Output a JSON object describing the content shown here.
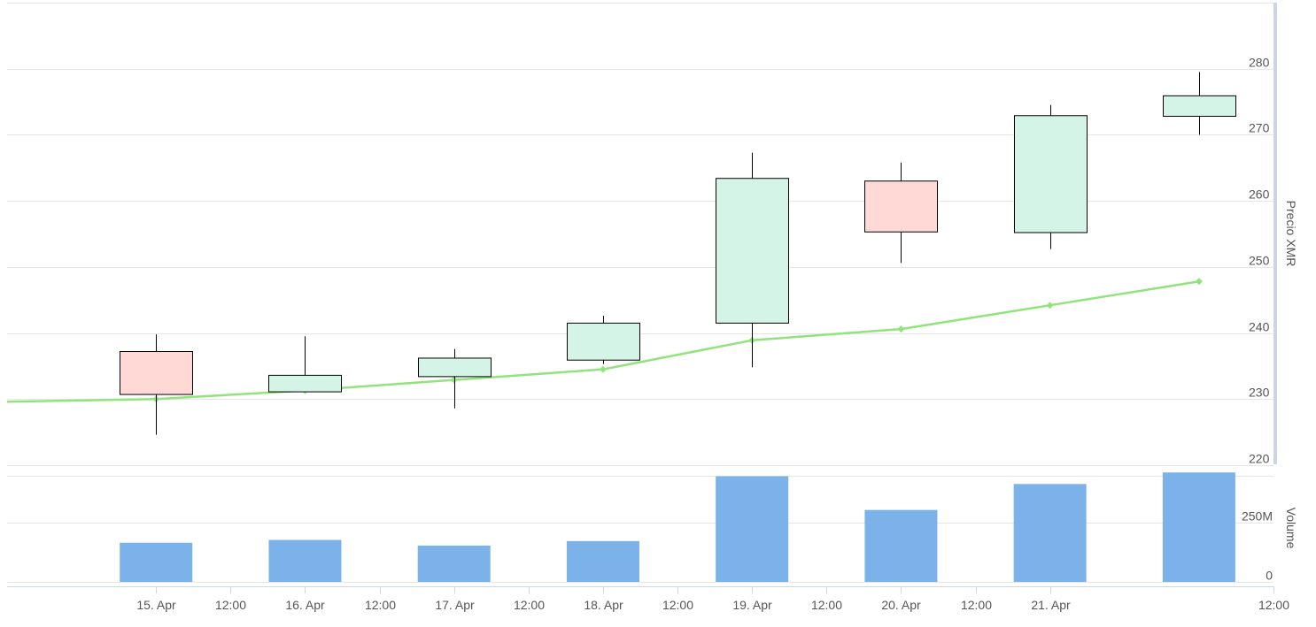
{
  "chart_data": {
    "type": "candlestick",
    "price_axis": {
      "title": "Precio XMR",
      "ticks": [
        220,
        230,
        240,
        250,
        260,
        270,
        280
      ],
      "range": [
        220,
        290
      ]
    },
    "volume_axis": {
      "title": "Volume",
      "ticks": [
        "0",
        "250M"
      ],
      "range_millions": [
        0,
        450
      ]
    },
    "x_axis": {
      "range": [
        "2024-04-14T00:00",
        "2024-04-22T12:00"
      ],
      "tick_labels": [
        {
          "t": "2024-04-15T00:00",
          "label": "15. Apr"
        },
        {
          "t": "2024-04-15T12:00",
          "label": "12:00"
        },
        {
          "t": "2024-04-16T00:00",
          "label": "16. Apr"
        },
        {
          "t": "2024-04-16T12:00",
          "label": "12:00"
        },
        {
          "t": "2024-04-17T00:00",
          "label": "17. Apr"
        },
        {
          "t": "2024-04-17T12:00",
          "label": "12:00"
        },
        {
          "t": "2024-04-18T00:00",
          "label": "18. Apr"
        },
        {
          "t": "2024-04-18T12:00",
          "label": "12:00"
        },
        {
          "t": "2024-04-19T00:00",
          "label": "19. Apr"
        },
        {
          "t": "2024-04-19T12:00",
          "label": "12:00"
        },
        {
          "t": "2024-04-20T00:00",
          "label": "20. Apr"
        },
        {
          "t": "2024-04-20T12:00",
          "label": "12:00"
        },
        {
          "t": "2024-04-21T00:00",
          "label": "21. Apr"
        },
        {
          "t": "2024-04-22T12:00",
          "label": "12:00"
        }
      ]
    },
    "candles": [
      {
        "date": "2024-04-15",
        "open": 237.2,
        "high": 239.8,
        "low": 224.6,
        "close": 230.7
      },
      {
        "date": "2024-04-16",
        "open": 231.1,
        "high": 239.5,
        "low": 231.1,
        "close": 233.6
      },
      {
        "date": "2024-04-17",
        "open": 233.4,
        "high": 237.6,
        "low": 228.6,
        "close": 236.2
      },
      {
        "date": "2024-04-18",
        "open": 235.9,
        "high": 242.6,
        "low": 235.3,
        "close": 241.5
      },
      {
        "date": "2024-04-19",
        "open": 241.5,
        "high": 267.3,
        "low": 234.8,
        "close": 263.4
      },
      {
        "date": "2024-04-20",
        "open": 263.0,
        "high": 265.8,
        "low": 250.6,
        "close": 255.3
      },
      {
        "date": "2024-04-21",
        "open": 255.2,
        "high": 274.5,
        "low": 252.7,
        "close": 272.9
      },
      {
        "date": "2024-04-22",
        "open": 272.8,
        "high": 279.5,
        "low": 270.0,
        "close": 275.9
      }
    ],
    "moving_average": {
      "color": "#90e47b",
      "start": {
        "date": "2024-04-14",
        "value": 229.6
      },
      "points": [
        {
          "date": "2024-04-15",
          "value": 230.0
        },
        {
          "date": "2024-04-16",
          "value": 231.3
        },
        {
          "date": "2024-04-17",
          "value": 232.9
        },
        {
          "date": "2024-04-18",
          "value": 234.5
        },
        {
          "date": "2024-04-19",
          "value": 238.9
        },
        {
          "date": "2024-04-20",
          "value": 240.6
        },
        {
          "date": "2024-04-21",
          "value": 244.2
        },
        {
          "date": "2024-04-22",
          "value": 247.8
        }
      ]
    },
    "volume_millions": [
      {
        "date": "2024-04-15",
        "value": 166
      },
      {
        "date": "2024-04-16",
        "value": 178
      },
      {
        "date": "2024-04-17",
        "value": 154
      },
      {
        "date": "2024-04-18",
        "value": 173
      },
      {
        "date": "2024-04-19",
        "value": 448
      },
      {
        "date": "2024-04-20",
        "value": 305
      },
      {
        "date": "2024-04-21",
        "value": 415
      },
      {
        "date": "2024-04-22",
        "value": 464
      }
    ],
    "colors": {
      "up_fill": "#d3f4e6",
      "down_fill": "#ffd9d6",
      "candle_stroke": "#000000",
      "volume": "#7cb2ea",
      "grid": "#e6e6e6",
      "navigator": "#cdd5e4"
    }
  }
}
